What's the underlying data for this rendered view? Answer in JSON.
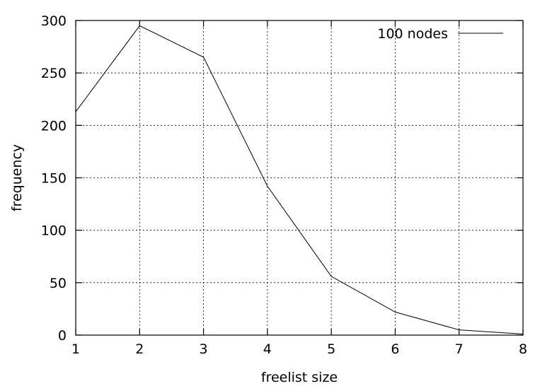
{
  "chart_data": {
    "type": "line",
    "xlabel": "freelist size",
    "ylabel": "frequency",
    "xlim": [
      1,
      8
    ],
    "ylim": [
      0,
      300
    ],
    "x_ticks": [
      1,
      2,
      3,
      4,
      5,
      6,
      7,
      8
    ],
    "y_ticks": [
      0,
      50,
      100,
      150,
      200,
      250,
      300
    ],
    "grid": true,
    "legend_position": "top-right",
    "series": [
      {
        "name": "100 nodes",
        "color": "#000000",
        "x": [
          1,
          2,
          3,
          4,
          5,
          6,
          7,
          8
        ],
        "y": [
          213,
          295,
          265,
          142,
          56,
          22,
          5,
          1
        ]
      }
    ]
  }
}
